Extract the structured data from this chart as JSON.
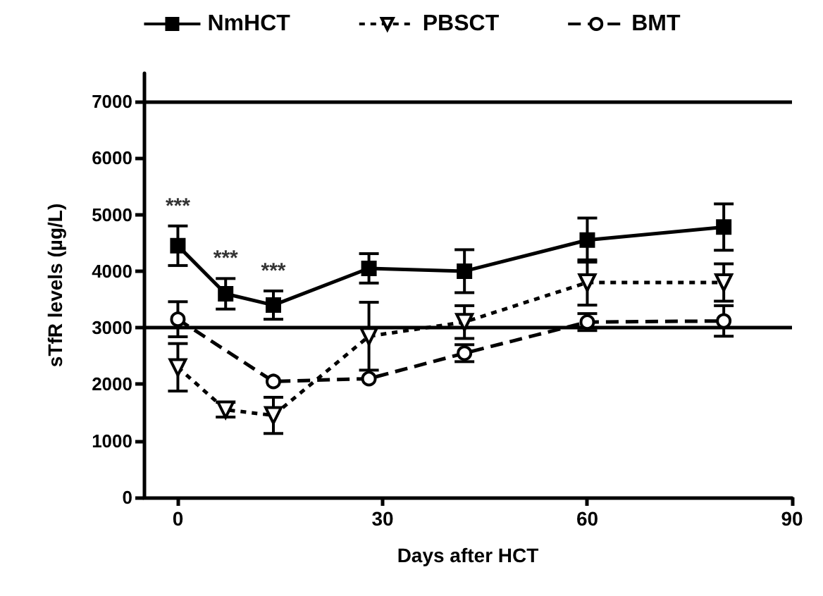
{
  "chart_data": {
    "type": "line",
    "xlabel": "Days after HCT",
    "ylabel": "sTfR levels (µg/L)",
    "x": [
      0,
      7,
      14,
      28,
      42,
      60,
      80
    ],
    "series": [
      {
        "name": "NmHCT",
        "color": "#000000",
        "marker": "square",
        "line_style": "solid",
        "values": [
          4450,
          3600,
          3400,
          4050,
          4000,
          4550,
          4780
        ],
        "errors": [
          350,
          270,
          250,
          260,
          380,
          390,
          410
        ]
      },
      {
        "name": "PBSCT",
        "color": "#000000",
        "marker": "triangle",
        "line_style": "dotted",
        "values": [
          2300,
          1550,
          1450,
          2850,
          3100,
          3800,
          3800
        ],
        "errors": [
          420,
          130,
          320,
          600,
          290,
          400,
          330
        ]
      },
      {
        "name": "BMT",
        "color": "#000000",
        "marker": "circle",
        "line_style": "dashed",
        "values": [
          3150,
          null,
          2050,
          2100,
          2550,
          3100,
          3120
        ],
        "errors": [
          310,
          null,
          null,
          null,
          150,
          150,
          270
        ]
      }
    ],
    "xlim": [
      -5,
      90
    ],
    "xticks": [
      0,
      30,
      60,
      90
    ],
    "ylim": [
      0,
      7500
    ],
    "yticks": [
      0,
      1000,
      2000,
      3000,
      4000,
      5000,
      6000,
      7000
    ],
    "ref_lines": [
      {
        "axis": "y",
        "value": 3000,
        "color": "#000000"
      },
      {
        "axis": "y",
        "value": 7000,
        "color": "#000000"
      }
    ],
    "annotations": [
      "***",
      "***",
      "***"
    ],
    "legend": "top",
    "grid": false
  }
}
